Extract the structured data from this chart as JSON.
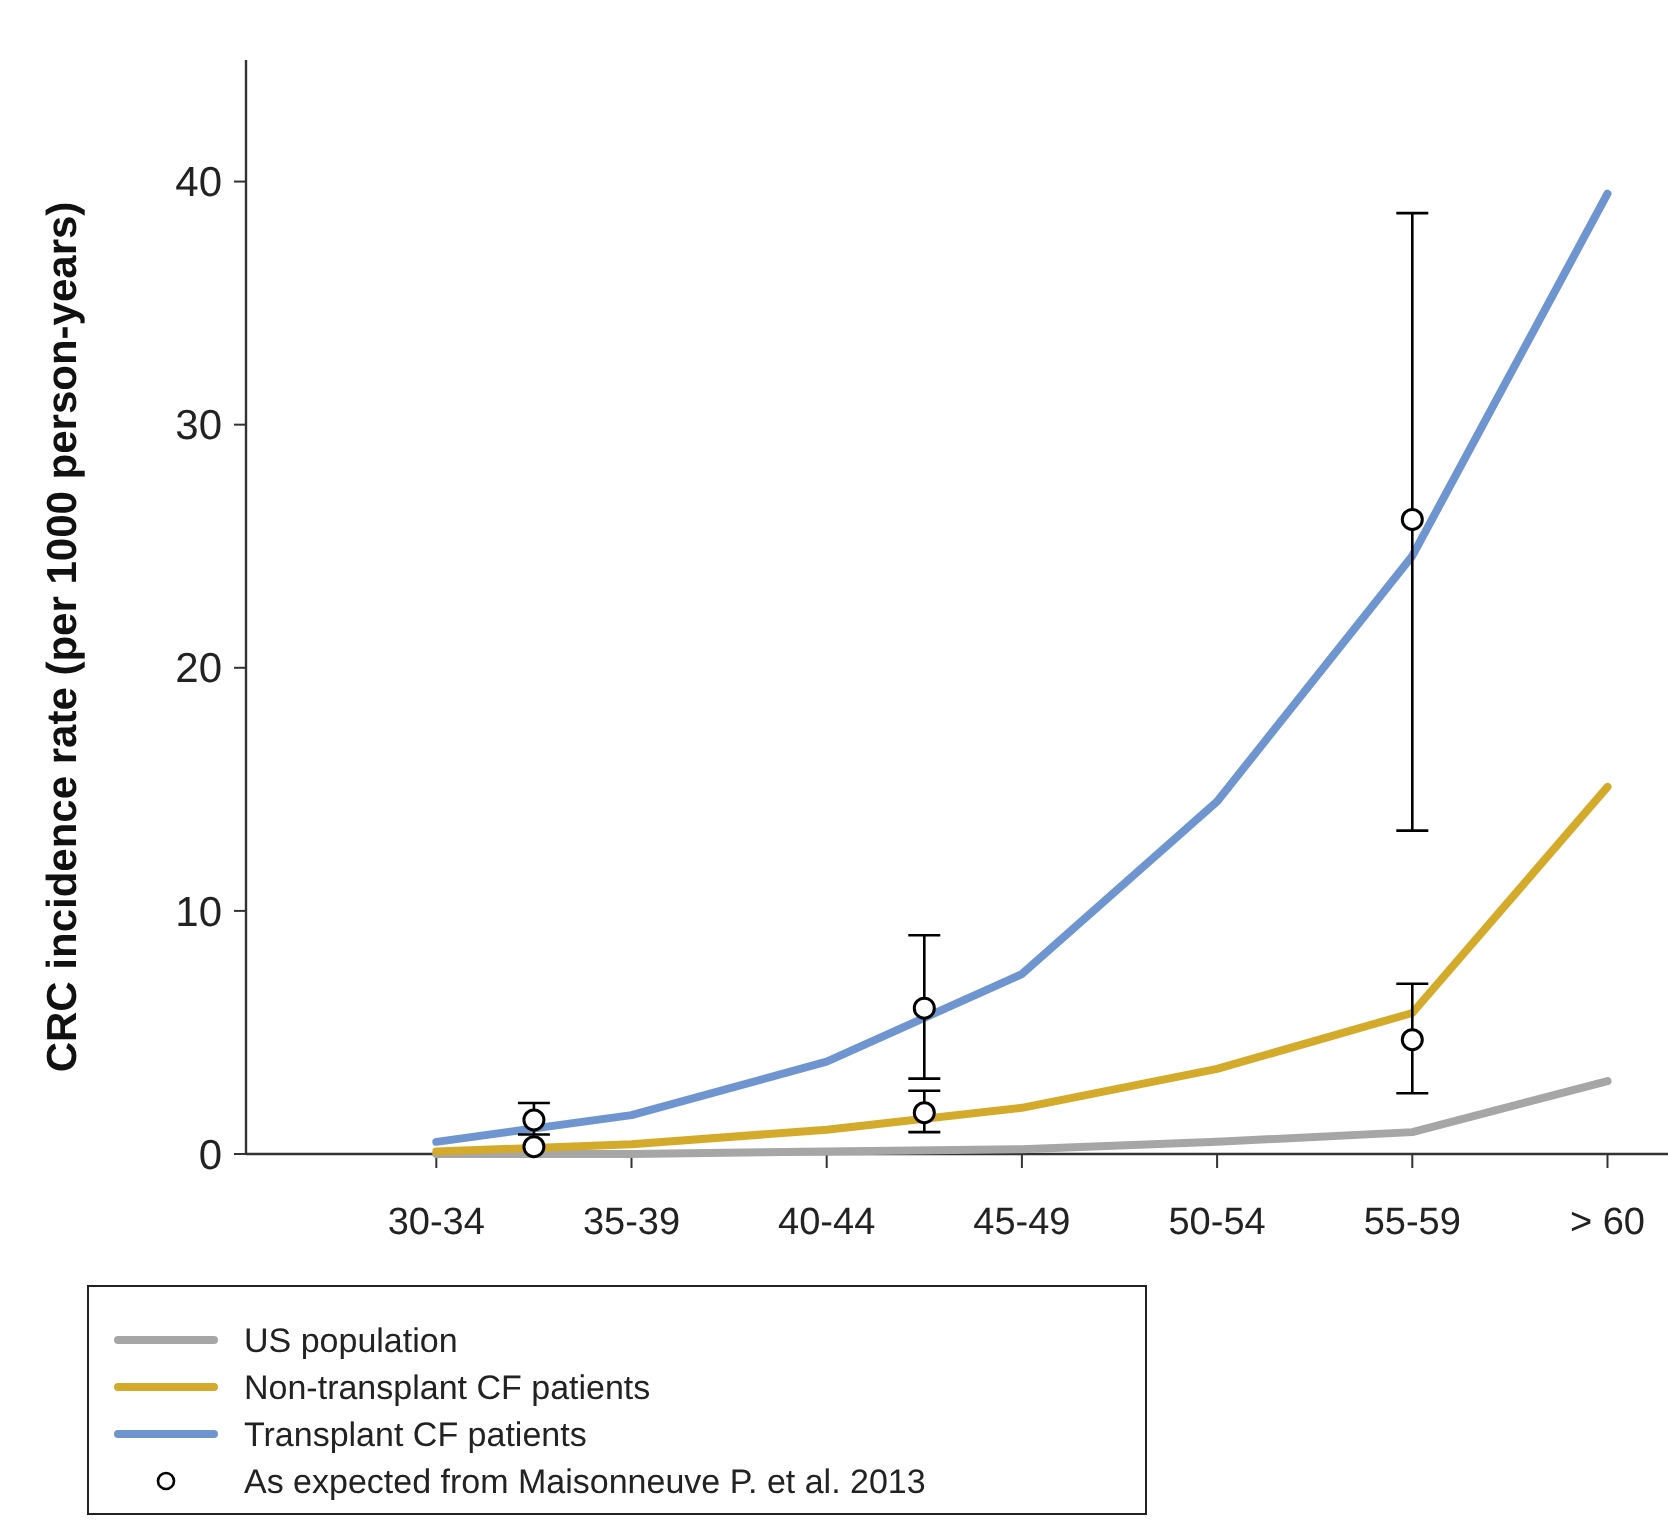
{
  "chart_data": {
    "type": "line",
    "ylabel": "CRC incidence rate (per 1000 person-years)",
    "categories": [
      "30-34",
      null,
      "35-39",
      null,
      "40-44",
      null,
      "45-49",
      null,
      "50-54",
      null,
      "55-59",
      null,
      "> 60"
    ],
    "ylim": [
      0,
      45
    ],
    "yticks": [
      0,
      10,
      20,
      30,
      40
    ],
    "grid": false,
    "legend": "bottom left",
    "line_style": "solid",
    "series": [
      {
        "name": "US population",
        "color": "#a6a6a6",
        "marker": "none",
        "x": [
          "30-34",
          "35-39",
          "40-44",
          "45-49",
          "50-54",
          "55-59",
          "> 60"
        ],
        "values": [
          0,
          0,
          0.1,
          0.2,
          0.5,
          0.9,
          3.0
        ]
      },
      {
        "name": "Non-transplant CF patients",
        "color": "#d4aa2a",
        "marker": "none",
        "x": [
          "30-34",
          "35-39",
          "40-44",
          "45-49",
          "50-54",
          "55-59",
          "> 60"
        ],
        "values": [
          0.1,
          0.4,
          1.0,
          1.9,
          3.5,
          5.8,
          15.1
        ]
      },
      {
        "name": "Transplant CF patients",
        "color": "#6f95d0",
        "marker": "none",
        "x": [
          "30-34",
          "35-39",
          "40-44",
          "45-49",
          "50-54",
          "55-59",
          "> 60"
        ],
        "values": [
          0.5,
          1.6,
          3.8,
          7.4,
          14.5,
          24.6,
          39.5
        ]
      },
      {
        "name": "As expected from Maisonneuve P. et al. 2013",
        "type": "scatter",
        "color": "#000000",
        "marker": "circle",
        "values": [
          null,
          0.3,
          null,
          null,
          null,
          1.7,
          null,
          null,
          null,
          null,
          4.7,
          null,
          null
        ],
        "errors": [
          null,
          null,
          null,
          null,
          null,
          [
            0.9,
            2.6
          ],
          null,
          null,
          null,
          null,
          [
            2.5,
            7.0
          ],
          null,
          null
        ]
      },
      {
        "type": "scatter",
        "color": "#000000",
        "marker": "circle",
        "values": [
          null,
          1.4,
          null,
          null,
          null,
          6.0,
          null,
          null,
          null,
          null,
          26.1,
          null,
          null
        ],
        "errors": [
          null,
          [
            0.8,
            2.1
          ],
          null,
          null,
          null,
          [
            3.1,
            9.0
          ],
          null,
          null,
          null,
          null,
          [
            13.3,
            38.7
          ],
          null,
          null
        ]
      }
    ]
  }
}
